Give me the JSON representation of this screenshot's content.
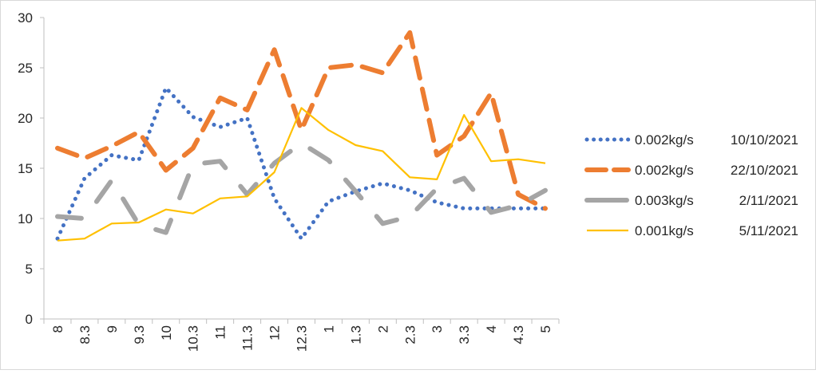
{
  "chart_data": {
    "type": "line",
    "title": "",
    "xlabel": "",
    "ylabel": "",
    "ylim": [
      0,
      30
    ],
    "yticks": [
      0,
      5,
      10,
      15,
      20,
      25,
      30
    ],
    "grid": false,
    "legend_position": "right",
    "categories": [
      "8",
      "8.3",
      "9",
      "9.3",
      "10",
      "10.3",
      "11",
      "11.3",
      "12",
      "12.3",
      "1",
      "1.3",
      "2",
      "2.3",
      "3",
      "3.3",
      "4",
      "4.3",
      "5"
    ],
    "series": [
      {
        "name": "0.002kg/s",
        "date": "10/10/2021",
        "color": "#4472C4",
        "style": "dotted",
        "values": [
          8.0,
          14.0,
          16.3,
          15.8,
          23.0,
          20.1,
          19.1,
          20.0,
          12.0,
          8.0,
          11.7,
          12.7,
          13.5,
          12.8,
          11.6,
          11.0,
          11.0,
          11.0,
          11.0
        ]
      },
      {
        "name": "0.002kg/s",
        "date": "22/10/2021",
        "color": "#ED7D31",
        "style": "dashed",
        "values": [
          17.0,
          16.0,
          17.2,
          18.6,
          14.8,
          17.0,
          22.0,
          20.8,
          26.8,
          18.8,
          25.0,
          25.3,
          24.5,
          28.5,
          16.3,
          18.2,
          22.5,
          12.4,
          11.0
        ]
      },
      {
        "name": "0.003kg/s",
        "date": "2/11/2021",
        "color": "#A5A5A5",
        "style": "long-dash",
        "values": [
          10.2,
          10.0,
          13.8,
          9.4,
          8.6,
          15.4,
          15.7,
          12.4,
          15.5,
          17.5,
          15.8,
          12.7,
          9.5,
          10.2,
          13.0,
          14.0,
          10.6,
          11.3,
          12.8
        ]
      },
      {
        "name": "0.001kg/s",
        "date": "5/11/2021",
        "color": "#FFC000",
        "style": "solid",
        "values": [
          7.8,
          8.0,
          9.5,
          9.6,
          10.9,
          10.5,
          12.0,
          12.2,
          14.6,
          21.0,
          18.8,
          17.3,
          16.7,
          14.1,
          13.9,
          20.3,
          15.7,
          15.9,
          15.5
        ]
      }
    ]
  }
}
